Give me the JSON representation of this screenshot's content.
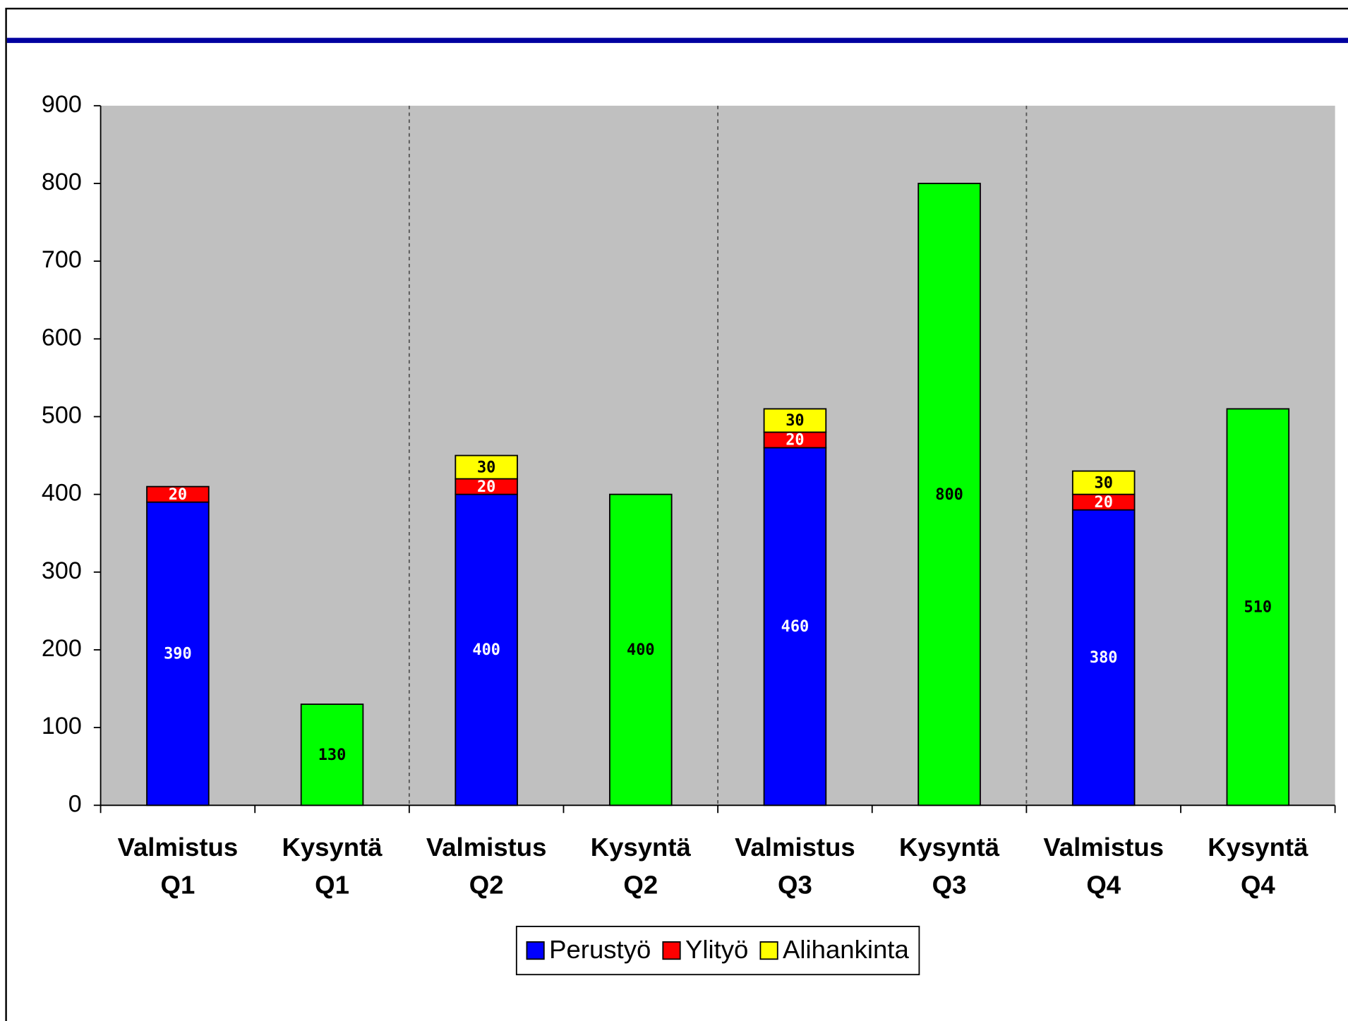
{
  "chart_data": {
    "type": "stacked_bar",
    "categories": [
      [
        "Valmistus",
        "Q1"
      ],
      [
        "Kysyntä",
        "Q1"
      ],
      [
        "Valmistus",
        "Q2"
      ],
      [
        "Kysyntä",
        "Q2"
      ],
      [
        "Valmistus",
        "Q3"
      ],
      [
        "Kysyntä",
        "Q3"
      ],
      [
        "Valmistus",
        "Q4"
      ],
      [
        "Kysyntä",
        "Q4"
      ]
    ],
    "series": [
      {
        "name": "Perustyö",
        "color": "#0000ff",
        "label_color": "#ffffff",
        "values": [
          390,
          null,
          400,
          null,
          460,
          null,
          380,
          null
        ]
      },
      {
        "name": "Ylityö",
        "color": "#ff0000",
        "label_color": "#ffffff",
        "values": [
          20,
          null,
          20,
          null,
          20,
          null,
          20,
          null
        ]
      },
      {
        "name": "Alihankinta",
        "color": "#ffff00",
        "label_color": "#000000",
        "values": [
          null,
          null,
          30,
          null,
          30,
          null,
          30,
          null
        ]
      },
      {
        "color": "#00ff00",
        "label_color": "#000000",
        "values": [
          null,
          130,
          null,
          400,
          null,
          800,
          null,
          510
        ]
      }
    ],
    "ylim": [
      0,
      900
    ],
    "yticks": [
      0,
      100,
      200,
      300,
      400,
      500,
      600,
      700,
      800,
      900
    ],
    "plot_color": "#c0c0c0",
    "legend": "bottom"
  }
}
